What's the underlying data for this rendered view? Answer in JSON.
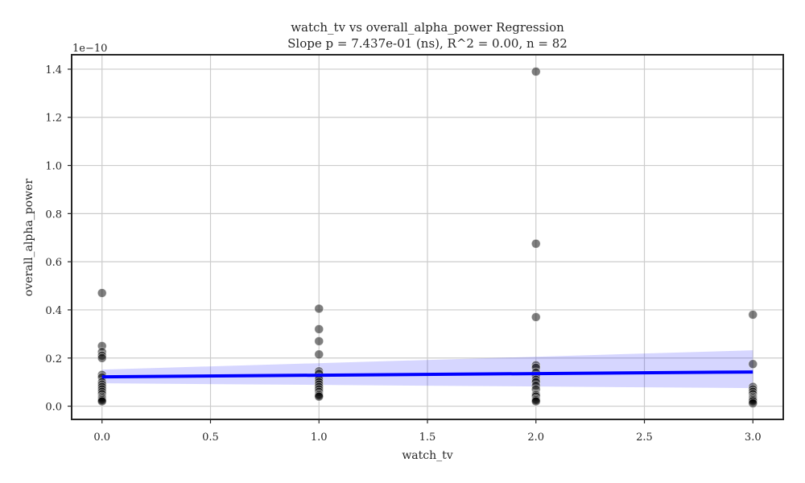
{
  "chart_data": {
    "type": "scatter",
    "title": "watch_tv vs overall_alpha_power Regression",
    "subtitle": "Slope p = 7.437e-01 (ns), R^2 = 0.00, n = 82",
    "xlabel": "watch_tv",
    "ylabel": "overall_alpha_power",
    "y_offset_label": "1e−10",
    "xlim": [
      -0.14,
      3.14
    ],
    "ylim": [
      -0.055,
      1.46
    ],
    "xticks": [
      0.0,
      0.5,
      1.0,
      1.5,
      2.0,
      2.5,
      3.0
    ],
    "xtick_labels": [
      "0.0",
      "0.5",
      "1.0",
      "1.5",
      "2.0",
      "2.5",
      "3.0"
    ],
    "yticks": [
      0.0,
      0.2,
      0.4,
      0.6,
      0.8,
      1.0,
      1.2,
      1.4
    ],
    "ytick_labels": [
      "0.0",
      "0.2",
      "0.4",
      "0.6",
      "0.8",
      "1.0",
      "1.2",
      "1.4"
    ],
    "grid": true,
    "points": [
      {
        "x": 0,
        "y": 0.47
      },
      {
        "x": 0,
        "y": 0.25
      },
      {
        "x": 0,
        "y": 0.225
      },
      {
        "x": 0,
        "y": 0.21
      },
      {
        "x": 0,
        "y": 0.2
      },
      {
        "x": 0,
        "y": 0.13
      },
      {
        "x": 0,
        "y": 0.12
      },
      {
        "x": 0,
        "y": 0.1
      },
      {
        "x": 0,
        "y": 0.09
      },
      {
        "x": 0,
        "y": 0.08
      },
      {
        "x": 0,
        "y": 0.07
      },
      {
        "x": 0,
        "y": 0.06
      },
      {
        "x": 0,
        "y": 0.05
      },
      {
        "x": 0,
        "y": 0.04
      },
      {
        "x": 0,
        "y": 0.035
      },
      {
        "x": 0,
        "y": 0.03
      },
      {
        "x": 0,
        "y": 0.025
      },
      {
        "x": 0,
        "y": 0.02
      },
      {
        "x": 1,
        "y": 0.405
      },
      {
        "x": 1,
        "y": 0.32
      },
      {
        "x": 1,
        "y": 0.27
      },
      {
        "x": 1,
        "y": 0.215
      },
      {
        "x": 1,
        "y": 0.145
      },
      {
        "x": 1,
        "y": 0.135
      },
      {
        "x": 1,
        "y": 0.12
      },
      {
        "x": 1,
        "y": 0.11
      },
      {
        "x": 1,
        "y": 0.1
      },
      {
        "x": 1,
        "y": 0.09
      },
      {
        "x": 1,
        "y": 0.08
      },
      {
        "x": 1,
        "y": 0.07
      },
      {
        "x": 1,
        "y": 0.06
      },
      {
        "x": 1,
        "y": 0.05
      },
      {
        "x": 1,
        "y": 0.045
      },
      {
        "x": 1,
        "y": 0.04
      },
      {
        "x": 2,
        "y": 1.39
      },
      {
        "x": 2,
        "y": 0.675
      },
      {
        "x": 2,
        "y": 0.37
      },
      {
        "x": 2,
        "y": 0.17
      },
      {
        "x": 2,
        "y": 0.16
      },
      {
        "x": 2,
        "y": 0.14
      },
      {
        "x": 2,
        "y": 0.125
      },
      {
        "x": 2,
        "y": 0.11
      },
      {
        "x": 2,
        "y": 0.1
      },
      {
        "x": 2,
        "y": 0.085
      },
      {
        "x": 2,
        "y": 0.07
      },
      {
        "x": 2,
        "y": 0.05
      },
      {
        "x": 2,
        "y": 0.045
      },
      {
        "x": 2,
        "y": 0.04
      },
      {
        "x": 2,
        "y": 0.03
      },
      {
        "x": 2,
        "y": 0.025
      },
      {
        "x": 2,
        "y": 0.02
      },
      {
        "x": 3,
        "y": 0.38
      },
      {
        "x": 3,
        "y": 0.175
      },
      {
        "x": 3,
        "y": 0.08
      },
      {
        "x": 3,
        "y": 0.07
      },
      {
        "x": 3,
        "y": 0.06
      },
      {
        "x": 3,
        "y": 0.05
      },
      {
        "x": 3,
        "y": 0.04
      },
      {
        "x": 3,
        "y": 0.035
      },
      {
        "x": 3,
        "y": 0.03
      },
      {
        "x": 3,
        "y": 0.025
      },
      {
        "x": 3,
        "y": 0.02
      },
      {
        "x": 3,
        "y": 0.012
      }
    ],
    "regression": {
      "x": [
        0.0,
        3.0
      ],
      "y": [
        0.122,
        0.142
      ],
      "ci_lower": [
        0.095,
        0.075
      ],
      "ci_upper": [
        0.152,
        0.232
      ]
    },
    "colors": {
      "points": "#000000",
      "regression_line": "#0000ff",
      "confidence_band": "#0000ff"
    }
  }
}
